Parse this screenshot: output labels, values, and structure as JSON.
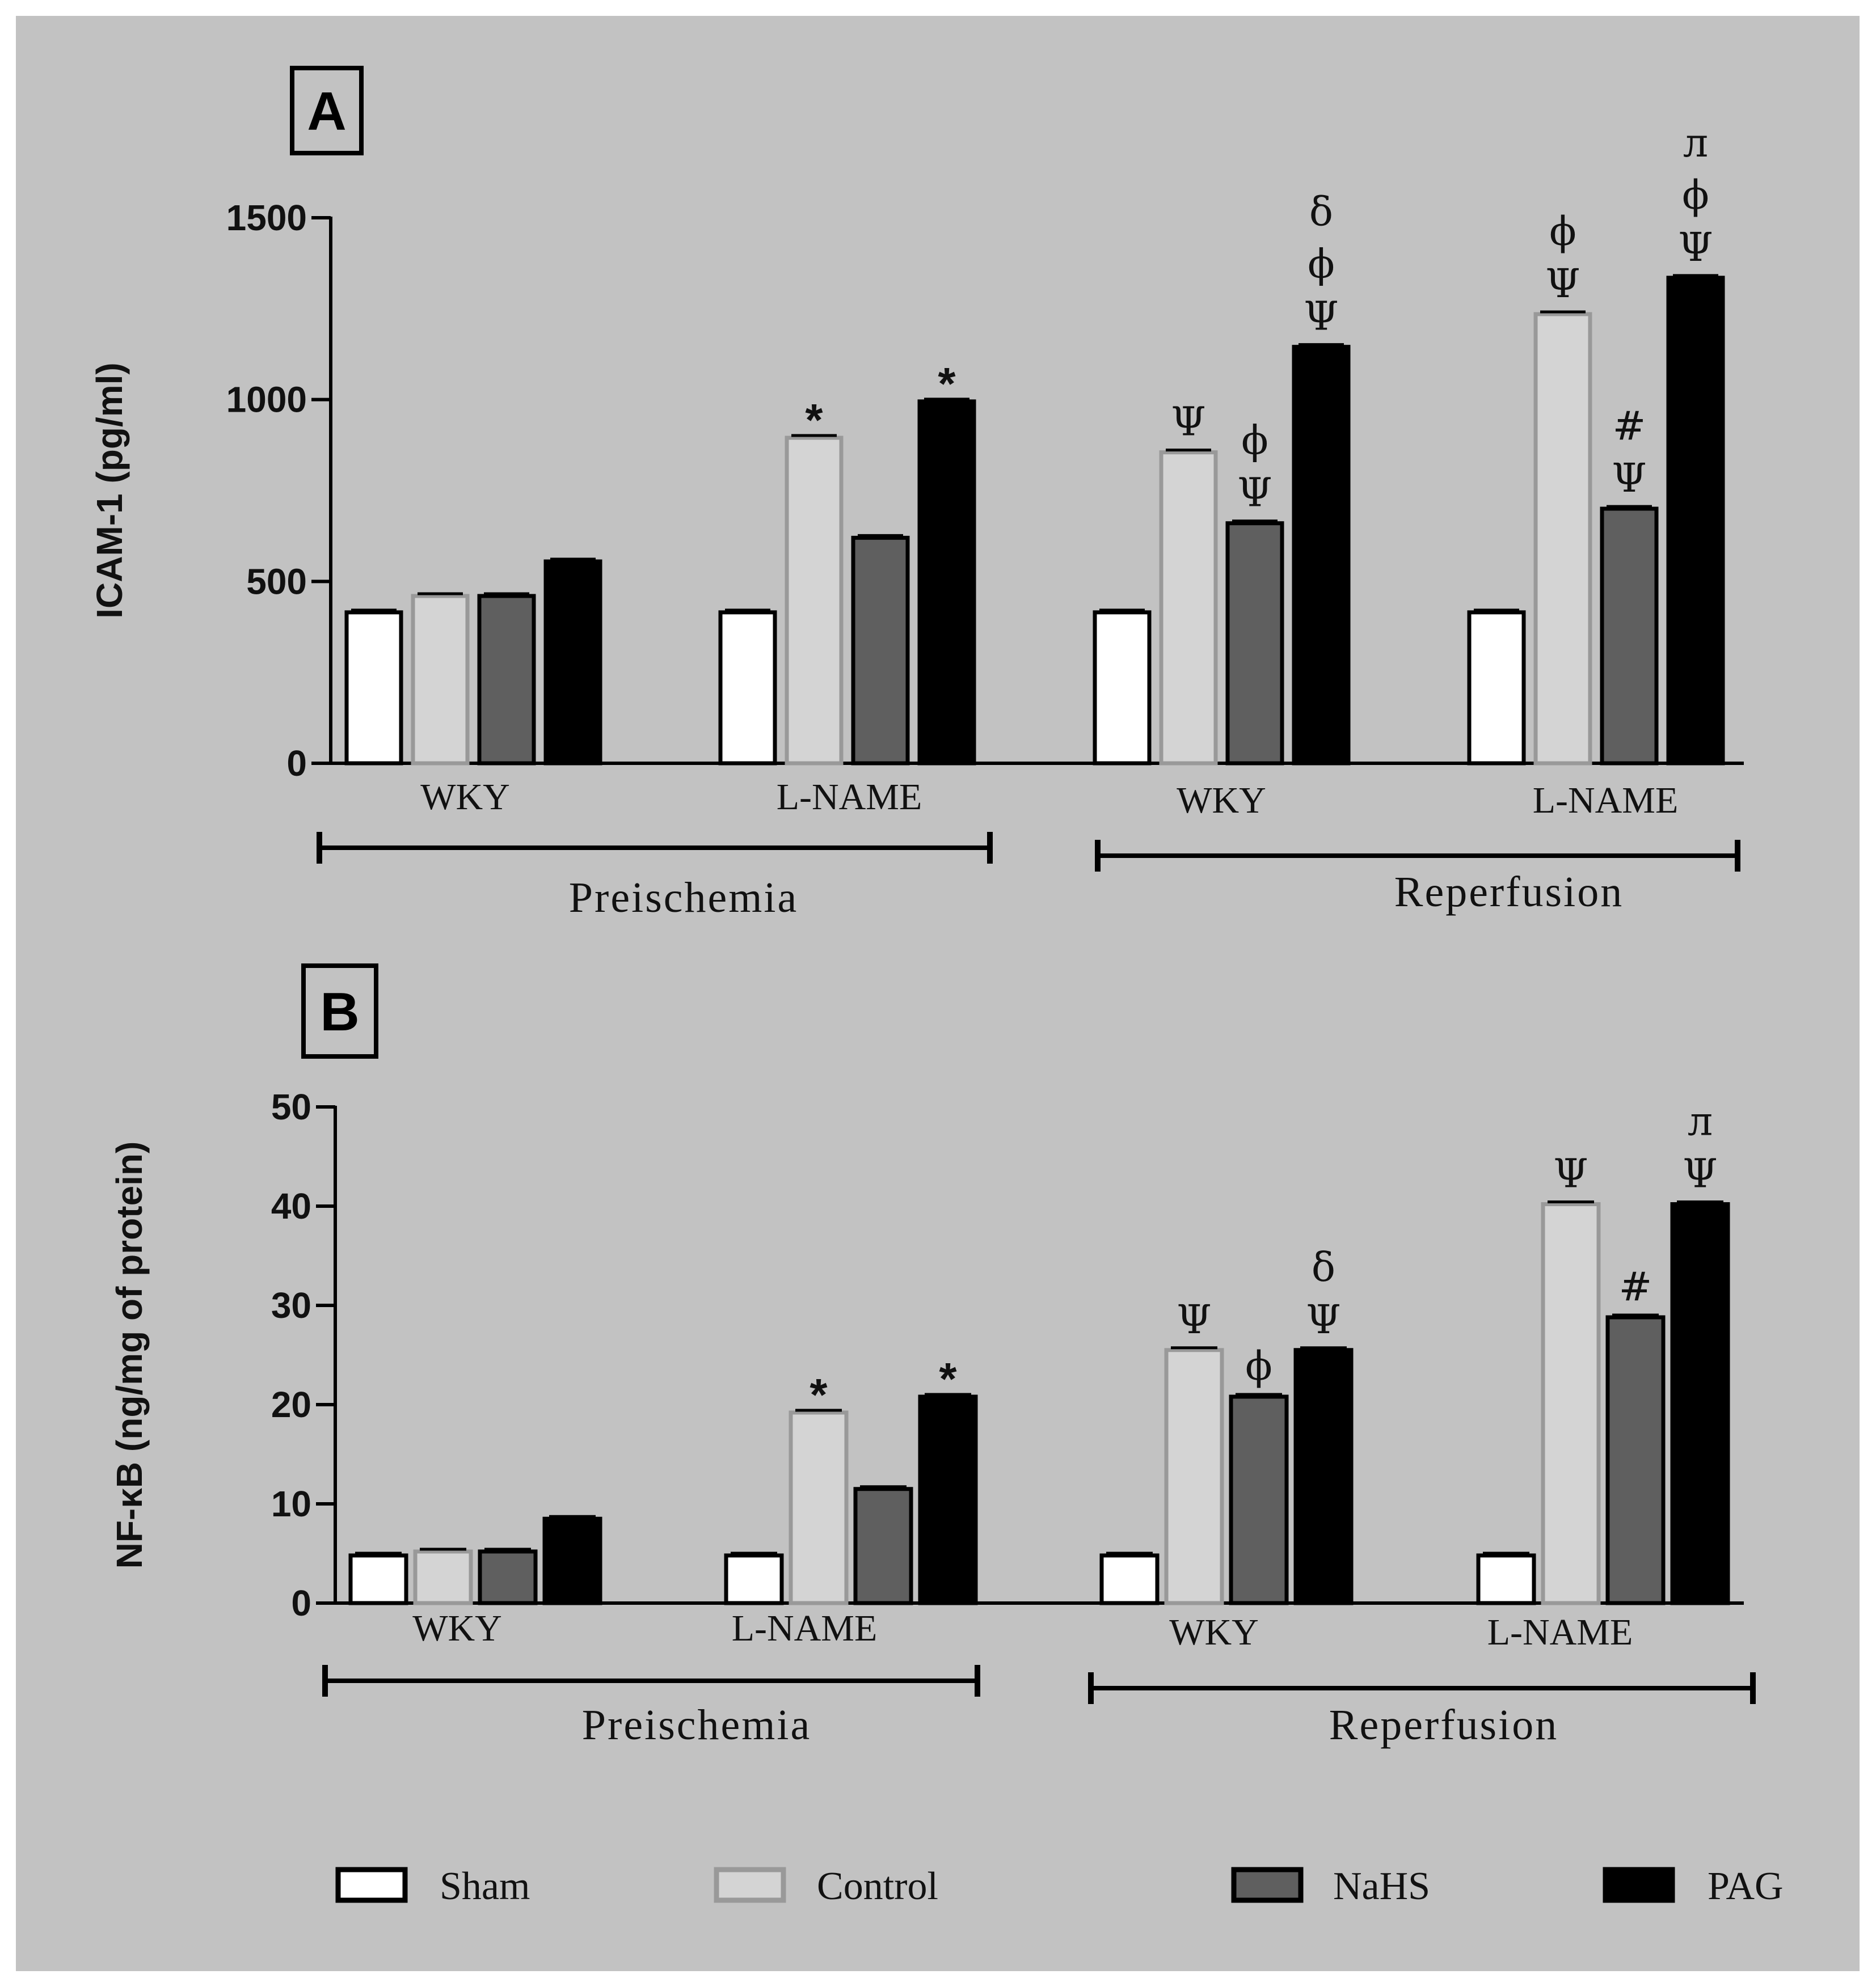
{
  "legend": [
    {
      "name": "Sham",
      "fill": "#ffffff",
      "stroke": "#000000"
    },
    {
      "name": "Control",
      "fill": "#d4d4d4",
      "stroke": "#999999"
    },
    {
      "name": "NaHS",
      "fill": "#5f5f5f",
      "stroke": "#000000"
    },
    {
      "name": "PAG",
      "fill": "#000000",
      "stroke": "#000000"
    }
  ],
  "chart_data": [
    {
      "type": "bar",
      "panel": "A",
      "ylabel": "ICAM-1 (pg/ml)",
      "ylim": [
        0,
        1500
      ],
      "yticks": [
        0,
        500,
        1000,
        1500
      ],
      "categories": [
        "WKY",
        "L-NAME",
        "WKY",
        "L-NAME"
      ],
      "groups": [
        {
          "label": "Preischemia",
          "categories": [
            0,
            1
          ]
        },
        {
          "label": "Reperfusion",
          "categories": [
            2,
            3
          ]
        }
      ],
      "series": [
        {
          "name": "Sham",
          "values": [
            415,
            415,
            415,
            415
          ]
        },
        {
          "name": "Control",
          "values": [
            460,
            895,
            855,
            1235
          ]
        },
        {
          "name": "NaHS",
          "values": [
            460,
            620,
            660,
            700
          ]
        },
        {
          "name": "PAG",
          "values": [
            555,
            995,
            1145,
            1335
          ]
        }
      ],
      "annotations": [
        {
          "category": 1,
          "series": 1,
          "lines": [
            "*"
          ]
        },
        {
          "category": 1,
          "series": 3,
          "lines": [
            "*"
          ]
        },
        {
          "category": 2,
          "series": 1,
          "lines": [
            "Ψ"
          ]
        },
        {
          "category": 2,
          "series": 2,
          "lines": [
            "ϕ",
            "Ψ"
          ]
        },
        {
          "category": 2,
          "series": 3,
          "lines": [
            "δ",
            "ϕ",
            "Ψ"
          ]
        },
        {
          "category": 3,
          "series": 1,
          "lines": [
            "ϕ",
            "Ψ"
          ]
        },
        {
          "category": 3,
          "series": 2,
          "lines": [
            "#",
            "Ψ"
          ]
        },
        {
          "category": 3,
          "series": 3,
          "lines": [
            "л",
            "ϕ",
            "Ψ"
          ]
        }
      ]
    },
    {
      "type": "bar",
      "panel": "B",
      "ylabel": "NF-κB (ng/mg of protein)",
      "ylim": [
        0,
        50
      ],
      "yticks": [
        0,
        10,
        20,
        30,
        40,
        50
      ],
      "categories": [
        "WKY",
        "L-NAME",
        "WKY",
        "L-NAME"
      ],
      "groups": [
        {
          "label": "Preischemia",
          "categories": [
            0,
            1
          ]
        },
        {
          "label": "Reperfusion",
          "categories": [
            2,
            3
          ]
        }
      ],
      "series": [
        {
          "name": "Sham",
          "values": [
            4.8,
            4.8,
            4.8,
            4.8
          ]
        },
        {
          "name": "Control",
          "values": [
            5.2,
            19.2,
            25.5,
            40.2
          ]
        },
        {
          "name": "NaHS",
          "values": [
            5.2,
            11.5,
            20.8,
            28.8
          ]
        },
        {
          "name": "PAG",
          "values": [
            8.5,
            20.8,
            25.5,
            40.2
          ]
        }
      ],
      "annotations": [
        {
          "category": 1,
          "series": 1,
          "lines": [
            "*"
          ]
        },
        {
          "category": 1,
          "series": 3,
          "lines": [
            "*"
          ]
        },
        {
          "category": 2,
          "series": 1,
          "lines": [
            "Ψ"
          ]
        },
        {
          "category": 2,
          "series": 2,
          "lines": [
            "ϕ"
          ]
        },
        {
          "category": 2,
          "series": 3,
          "lines": [
            "δ",
            "Ψ"
          ]
        },
        {
          "category": 3,
          "series": 1,
          "lines": [
            "Ψ"
          ]
        },
        {
          "category": 3,
          "series": 2,
          "lines": [
            "#"
          ]
        },
        {
          "category": 3,
          "series": 3,
          "lines": [
            "л",
            "Ψ"
          ]
        }
      ]
    }
  ]
}
